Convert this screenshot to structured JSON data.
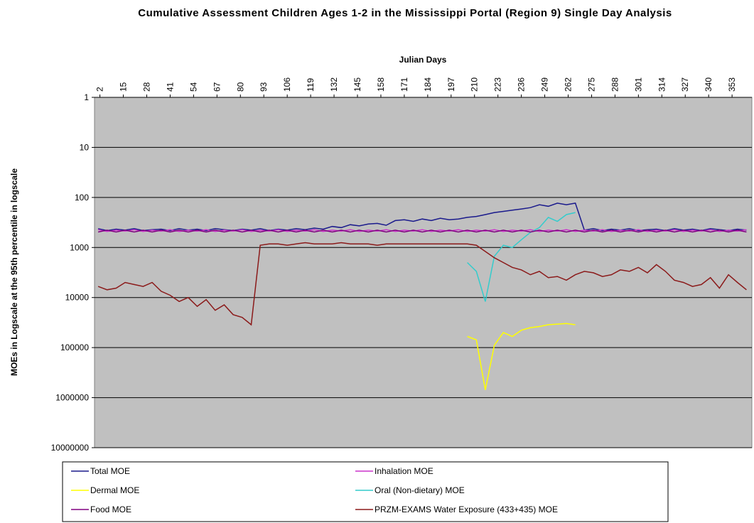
{
  "chart_data": {
    "type": "line",
    "title": "Cumulative Assessment Children Ages 1-2 in the Mississippi Portal (Region 9) Single Day Analysis",
    "x_label": "Julian Days",
    "y_label": "MOEs in Logscale at the 95th percentile in logscale",
    "x": [
      1,
      6,
      11,
      16,
      21,
      26,
      31,
      36,
      41,
      46,
      51,
      56,
      61,
      66,
      71,
      76,
      81,
      86,
      91,
      96,
      101,
      106,
      111,
      116,
      121,
      126,
      131,
      136,
      141,
      146,
      151,
      156,
      161,
      166,
      171,
      176,
      181,
      186,
      191,
      196,
      201,
      206,
      211,
      216,
      221,
      226,
      231,
      236,
      241,
      246,
      251,
      256,
      261,
      266,
      271,
      276,
      281,
      286,
      291,
      296,
      301,
      306,
      311,
      316,
      321,
      326,
      331,
      336,
      341,
      346,
      351,
      356,
      361
    ],
    "xlim": [
      -1,
      364
    ],
    "xticks": [
      2,
      15,
      28,
      41,
      54,
      67,
      80,
      93,
      106,
      119,
      132,
      145,
      158,
      171,
      184,
      197,
      210,
      223,
      236,
      249,
      262,
      275,
      288,
      301,
      314,
      327,
      340,
      353
    ],
    "ylim": [
      1,
      10000000
    ],
    "yticks": [
      1,
      10,
      100,
      1000,
      10000,
      100000,
      1000000,
      10000000
    ],
    "y_log": true,
    "y_reversed": true,
    "grid": true,
    "legend_position": "bottom",
    "series": [
      {
        "name": "Total MOE",
        "color": "#1a1a8c",
        "values": [
          420,
          460,
          430,
          450,
          420,
          460,
          440,
          430,
          460,
          420,
          450,
          430,
          460,
          420,
          440,
          460,
          430,
          450,
          420,
          460,
          430,
          450,
          420,
          440,
          410,
          430,
          380,
          400,
          350,
          370,
          340,
          330,
          360,
          290,
          280,
          300,
          270,
          290,
          260,
          280,
          270,
          250,
          240,
          220,
          200,
          190,
          180,
          170,
          160,
          140,
          150,
          130,
          140,
          130,
          450,
          420,
          460,
          430,
          450,
          420,
          460,
          440,
          430,
          460,
          420,
          450,
          430,
          460,
          420,
          440,
          460,
          430,
          450
        ]
      },
      {
        "name": "Inhalation MOE",
        "color": "#cc33cc",
        "values": [
          440,
          480,
          450,
          470,
          440,
          480,
          450,
          470,
          440,
          480,
          450,
          470,
          440,
          480,
          450,
          470,
          440,
          480,
          450,
          470,
          440,
          480,
          450,
          470,
          440,
          480,
          450,
          470,
          440,
          480,
          450,
          470,
          440,
          480,
          450,
          470,
          440,
          480,
          450,
          470,
          440,
          480,
          450,
          470,
          440,
          480,
          450,
          470,
          440,
          480,
          450,
          470,
          440,
          480,
          450,
          470,
          440,
          480,
          450,
          470,
          440,
          480,
          450,
          470,
          440,
          480,
          450,
          470,
          440,
          480,
          450,
          470,
          440
        ]
      },
      {
        "name": "Dermal MOE",
        "color": "#ffff00",
        "values": [
          null,
          null,
          null,
          null,
          null,
          null,
          null,
          null,
          null,
          null,
          null,
          null,
          null,
          null,
          null,
          null,
          null,
          null,
          null,
          null,
          null,
          null,
          null,
          null,
          null,
          null,
          null,
          null,
          null,
          null,
          null,
          null,
          null,
          null,
          null,
          null,
          null,
          null,
          null,
          null,
          null,
          60000,
          70000,
          700000,
          90000,
          50000,
          60000,
          45000,
          40000,
          38000,
          35000,
          34000,
          33000,
          35000,
          null,
          null,
          null,
          null,
          null,
          null,
          null,
          null,
          null,
          null,
          null,
          null,
          null,
          null,
          null,
          null,
          null,
          null,
          null
        ]
      },
      {
        "name": "Oral (Non-dietary) MOE",
        "color": "#33cccc",
        "values": [
          null,
          null,
          null,
          null,
          null,
          null,
          null,
          null,
          null,
          null,
          null,
          null,
          null,
          null,
          null,
          null,
          null,
          null,
          null,
          null,
          null,
          null,
          null,
          null,
          null,
          null,
          null,
          null,
          null,
          null,
          null,
          null,
          null,
          null,
          null,
          null,
          null,
          null,
          null,
          null,
          null,
          2000,
          3000,
          12000,
          1500,
          900,
          1000,
          700,
          500,
          400,
          250,
          300,
          220,
          200,
          null,
          null,
          null,
          null,
          null,
          null,
          null,
          null,
          null,
          null,
          null,
          null,
          null,
          null,
          null,
          null,
          null,
          null,
          null
        ]
      },
      {
        "name": "Food MOE",
        "color": "#800080",
        "values": [
          490,
          450,
          490,
          450,
          490,
          450,
          490,
          450,
          490,
          450,
          490,
          450,
          490,
          450,
          490,
          450,
          490,
          450,
          490,
          450,
          490,
          450,
          490,
          450,
          490,
          450,
          490,
          450,
          490,
          450,
          490,
          450,
          490,
          450,
          490,
          450,
          490,
          450,
          490,
          450,
          490,
          450,
          490,
          450,
          490,
          450,
          490,
          450,
          490,
          450,
          490,
          450,
          490,
          450,
          490,
          450,
          490,
          450,
          490,
          450,
          490,
          450,
          490,
          450,
          490,
          450,
          490,
          450,
          490,
          450,
          490,
          450,
          490
        ]
      },
      {
        "name": "PRZM-EXAMS Water Exposure (433+435) MOE",
        "color": "#8b1a1a",
        "values": [
          6000,
          7000,
          6500,
          5000,
          5500,
          6000,
          5000,
          7500,
          9000,
          12000,
          10000,
          15000,
          11000,
          18000,
          14000,
          22000,
          25000,
          35000,
          900,
          850,
          850,
          900,
          850,
          800,
          850,
          850,
          850,
          800,
          850,
          850,
          850,
          900,
          850,
          850,
          850,
          850,
          850,
          850,
          850,
          850,
          850,
          850,
          900,
          1200,
          1600,
          2000,
          2500,
          2800,
          3500,
          3000,
          4000,
          3800,
          4500,
          3500,
          3000,
          3200,
          3800,
          3500,
          2800,
          3000,
          2500,
          3200,
          2200,
          3000,
          4500,
          5000,
          6000,
          5500,
          4000,
          6500,
          3500,
          5000,
          7000
        ]
      }
    ]
  }
}
